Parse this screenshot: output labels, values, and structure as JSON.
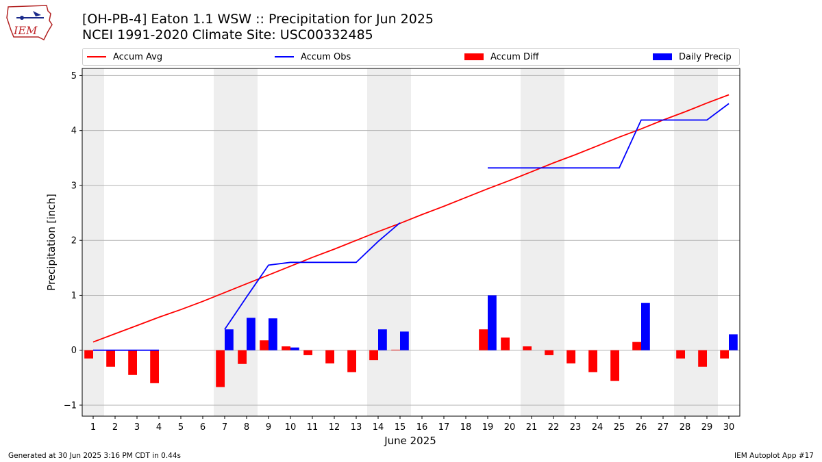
{
  "header": {
    "title": "[OH-PB-4] Eaton 1.1 WSW :: Precipitation for Jun 2025",
    "subtitle": "NCEI 1991-2020 Climate Site: USC00332485",
    "logo_text": "IEM"
  },
  "legend": {
    "items": [
      {
        "label": "Accum Avg",
        "kind": "line",
        "color": "#ff0000"
      },
      {
        "label": "Accum Obs",
        "kind": "line",
        "color": "#0000ff"
      },
      {
        "label": "Accum Diff",
        "kind": "bar",
        "color": "#ff0000"
      },
      {
        "label": "Daily Precip",
        "kind": "bar",
        "color": "#0000ff"
      }
    ]
  },
  "footer": {
    "generated": "Generated at 30 Jun 2025 3:16 PM CDT in 0.44s",
    "app": "IEM Autoplot App #17"
  },
  "chart_data": {
    "type": "bar",
    "xlabel": "June 2025",
    "ylabel": "Precipitation [inch]",
    "ylim": [
      -1.2,
      5.13
    ],
    "yticks": [
      -1,
      0,
      1,
      2,
      3,
      4,
      5
    ],
    "grid": true,
    "legend_placement": "top",
    "categories": [
      "1",
      "2",
      "3",
      "4",
      "5",
      "6",
      "7",
      "8",
      "9",
      "10",
      "11",
      "12",
      "13",
      "14",
      "15",
      "16",
      "17",
      "18",
      "19",
      "20",
      "21",
      "22",
      "23",
      "24",
      "25",
      "26",
      "27",
      "28",
      "29",
      "30"
    ],
    "weekend_shading_days": [
      [
        1,
        1
      ],
      [
        7,
        8
      ],
      [
        14,
        15
      ],
      [
        21,
        22
      ],
      [
        28,
        29
      ]
    ],
    "series": [
      {
        "name": "Accum Avg",
        "kind": "line",
        "color": "#ff0000",
        "values": [
          0.15,
          0.3,
          0.45,
          0.6,
          0.74,
          0.89,
          1.05,
          1.21,
          1.37,
          1.53,
          1.69,
          1.84,
          2.0,
          2.16,
          2.31,
          2.47,
          2.62,
          2.78,
          2.94,
          3.09,
          3.25,
          3.41,
          3.56,
          3.72,
          3.88,
          4.03,
          4.19,
          4.34,
          4.5,
          4.65
        ]
      },
      {
        "name": "Accum Obs",
        "kind": "line",
        "color": "#0000ff",
        "values": [
          0.0,
          0.0,
          0.0,
          0.0,
          null,
          null,
          0.38,
          0.97,
          1.55,
          1.6,
          1.6,
          1.6,
          1.6,
          1.98,
          2.32,
          null,
          null,
          null,
          3.32,
          3.32,
          3.32,
          3.32,
          3.32,
          3.32,
          3.32,
          4.19,
          4.19,
          4.19,
          4.19,
          4.49
        ]
      },
      {
        "name": "Accum Diff",
        "kind": "bar",
        "color": "#ff0000",
        "values": [
          -0.15,
          -0.3,
          -0.45,
          -0.6,
          null,
          null,
          -0.67,
          -0.25,
          0.18,
          0.07,
          -0.09,
          -0.24,
          -0.4,
          -0.18,
          0.01,
          null,
          null,
          null,
          0.38,
          0.23,
          0.07,
          -0.09,
          -0.24,
          -0.4,
          -0.56,
          0.15,
          null,
          -0.15,
          -0.3,
          -0.15
        ]
      },
      {
        "name": "Daily Precip",
        "kind": "bar",
        "color": "#0000ff",
        "values": [
          0,
          0,
          0,
          0,
          null,
          null,
          0.38,
          0.59,
          0.58,
          0.05,
          0,
          0,
          0,
          0.38,
          0.34,
          null,
          null,
          null,
          1.0,
          0,
          0,
          0,
          0,
          0,
          0,
          0.86,
          0,
          0,
          0,
          0.29
        ]
      }
    ]
  }
}
